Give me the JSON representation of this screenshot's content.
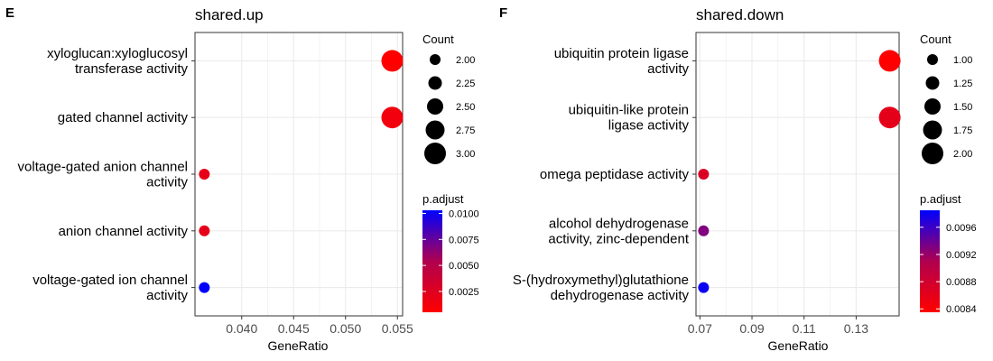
{
  "colors": {
    "low": "#ff0000",
    "high": "#0000ff",
    "mid": "#b0004f",
    "grid": "#ebebeb",
    "border": "#333333"
  },
  "chart_data": [
    {
      "type": "scatter",
      "tag": "E",
      "title": "shared.up",
      "xlabel": "GeneRatio",
      "ylabel": "",
      "xlim": [
        0.0355,
        0.0555
      ],
      "xticks": [
        0.04,
        0.045,
        0.05,
        0.055
      ],
      "xtick_labels": [
        "0.040",
        "0.045",
        "0.050",
        "0.055"
      ],
      "categories": [
        [
          "xyloglucan:xyloglucosyl",
          "transferase activity"
        ],
        [
          "gated channel activity"
        ],
        [
          "voltage-gated anion channel",
          "activity"
        ],
        [
          "anion channel activity"
        ],
        [
          "voltage-gated ion channel",
          "activity"
        ]
      ],
      "points": [
        {
          "x": 0.0545,
          "count": 3,
          "p_adjust": 0.0005
        },
        {
          "x": 0.0545,
          "count": 3,
          "p_adjust": 0.0013
        },
        {
          "x": 0.0364,
          "count": 2,
          "p_adjust": 0.002
        },
        {
          "x": 0.0364,
          "count": 2,
          "p_adjust": 0.002
        },
        {
          "x": 0.0364,
          "count": 2,
          "p_adjust": 0.0103
        }
      ],
      "size_legend": {
        "title": "Count",
        "values": [
          2.0,
          2.25,
          2.5,
          2.75,
          3.0
        ],
        "labels": [
          "2.00",
          "2.25",
          "2.50",
          "2.75",
          "3.00"
        ],
        "range": [
          2,
          3
        ]
      },
      "color_legend": {
        "title": "p.adjust",
        "range": [
          0.0005,
          0.0103
        ],
        "ticks": [
          0.0025,
          0.005,
          0.0075,
          0.01
        ],
        "tick_labels": [
          "0.0025",
          "0.0050",
          "0.0075",
          "0.0100"
        ]
      }
    },
    {
      "type": "scatter",
      "tag": "F",
      "title": "shared.down",
      "xlabel": "GeneRatio",
      "ylabel": "",
      "xlim": [
        0.0685,
        0.1465
      ],
      "xticks": [
        0.07,
        0.09,
        0.11,
        0.13
      ],
      "xtick_labels": [
        "0.07",
        "0.09",
        "0.11",
        "0.13"
      ],
      "categories": [
        [
          "ubiquitin protein ligase",
          "activity"
        ],
        [
          "ubiquitin-like protein",
          "ligase activity"
        ],
        [
          "omega peptidase activity"
        ],
        [
          "alcohol dehydrogenase",
          "activity, zinc-dependent"
        ],
        [
          "S-(hydroxymethyl)glutathione",
          "dehydrogenase activity"
        ]
      ],
      "points": [
        {
          "x": 0.1429,
          "count": 2,
          "p_adjust": 0.0083
        },
        {
          "x": 0.1429,
          "count": 2,
          "p_adjust": 0.0086
        },
        {
          "x": 0.0714,
          "count": 1,
          "p_adjust": 0.0087
        },
        {
          "x": 0.0714,
          "count": 1,
          "p_adjust": 0.0093
        },
        {
          "x": 0.0714,
          "count": 1,
          "p_adjust": 0.0098
        }
      ],
      "size_legend": {
        "title": "Count",
        "values": [
          1.0,
          1.25,
          1.5,
          1.75,
          2.0
        ],
        "labels": [
          "1.00",
          "1.25",
          "1.50",
          "1.75",
          "2.00"
        ],
        "range": [
          1,
          2
        ]
      },
      "color_legend": {
        "title": "p.adjust",
        "range": [
          0.00835,
          0.00985
        ],
        "ticks": [
          0.0084,
          0.0088,
          0.0092,
          0.0096
        ],
        "tick_labels": [
          "0.0084",
          "0.0088",
          "0.0092",
          "0.0096"
        ]
      }
    }
  ]
}
